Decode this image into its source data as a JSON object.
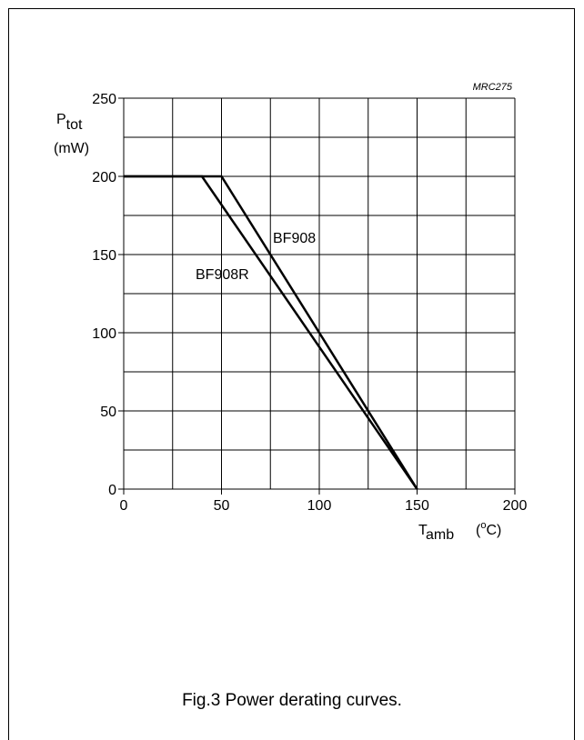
{
  "chart_data": {
    "type": "line",
    "code": "MRC275",
    "ylabel_main": "P",
    "ylabel_sub": "tot",
    "yunit": "(mW)",
    "xlabel_main": "T",
    "xlabel_sub": "amb",
    "xunit_open": "(",
    "xunit_sup": "o",
    "xunit_close": "C)",
    "xlim": [
      0,
      200
    ],
    "ylim": [
      0,
      250
    ],
    "xticks": [
      0,
      50,
      100,
      150,
      200
    ],
    "yticks": [
      0,
      50,
      100,
      150,
      200,
      250
    ],
    "grid": true,
    "series": [
      {
        "name": "BF908",
        "x": [
          0,
          50,
          150
        ],
        "y": [
          200,
          200,
          0
        ]
      },
      {
        "name": "BF908R",
        "x": [
          0,
          40,
          150
        ],
        "y": [
          200,
          200,
          0
        ]
      }
    ]
  },
  "caption": "Fig.3  Power derating curves."
}
